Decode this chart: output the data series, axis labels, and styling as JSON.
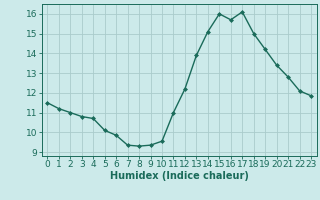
{
  "x": [
    0,
    1,
    2,
    3,
    4,
    5,
    6,
    7,
    8,
    9,
    10,
    11,
    12,
    13,
    14,
    15,
    16,
    17,
    18,
    19,
    20,
    21,
    22,
    23
  ],
  "y": [
    11.5,
    11.2,
    11.0,
    10.8,
    10.7,
    10.1,
    9.85,
    9.35,
    9.3,
    9.35,
    9.55,
    11.0,
    12.2,
    13.9,
    15.1,
    16.0,
    15.7,
    16.1,
    15.0,
    14.2,
    13.4,
    12.8,
    12.1,
    11.85
  ],
  "line_color": "#1a6b5a",
  "marker": "D",
  "markersize": 2.0,
  "linewidth": 1.0,
  "bg_color": "#cceaea",
  "grid_color": "#aacccc",
  "xlabel": "Humidex (Indice chaleur)",
  "xlabel_fontsize": 7,
  "tick_fontsize": 6.5,
  "ylim": [
    8.8,
    16.5
  ],
  "yticks": [
    9,
    10,
    11,
    12,
    13,
    14,
    15,
    16
  ],
  "xlim": [
    -0.5,
    23.5
  ],
  "xticks": [
    0,
    1,
    2,
    3,
    4,
    5,
    6,
    7,
    8,
    9,
    10,
    11,
    12,
    13,
    14,
    15,
    16,
    17,
    18,
    19,
    20,
    21,
    22,
    23
  ]
}
